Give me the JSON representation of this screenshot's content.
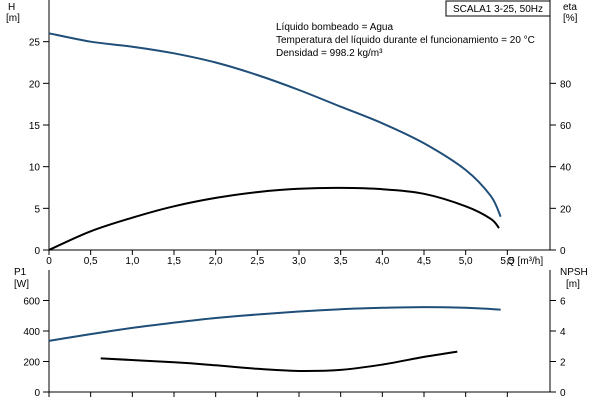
{
  "window": {
    "title": "SCALA1 3-25, 50Hz"
  },
  "annotation": {
    "liquid": "Líquido bombeado = Agua",
    "temperature": "Temperatura del líquido durante el funcionamiento = 20 °C",
    "density": "Densidad = 998.2 kg/m³"
  },
  "colors": {
    "head_curve": "#1f4e79",
    "eta_curve": "#000000",
    "p1_curve": "#1f4e79",
    "npsh_curve": "#000000",
    "axes": "#000000"
  },
  "chart_data": [
    {
      "type": "line",
      "x": {
        "label": "Q [m³/h]",
        "ticks": [
          "0",
          "0,5",
          "1,0",
          "1,5",
          "2,0",
          "2,5",
          "3,0",
          "3,5",
          "4,0",
          "4,5",
          "5,0",
          "5,5"
        ],
        "range": [
          0,
          6
        ]
      },
      "y_left": {
        "unit": "H",
        "unit_line2": "[m]",
        "ticks": [
          "0",
          "5",
          "10",
          "15",
          "20",
          "25"
        ],
        "range": [
          0,
          30
        ]
      },
      "y_right": {
        "unit": "eta",
        "unit_line2": "[%]",
        "ticks": [
          "0",
          "20",
          "40",
          "60",
          "80"
        ],
        "range": [
          0,
          120
        ]
      },
      "grid": false,
      "series": [
        {
          "axis": "left",
          "points": [
            [
              0,
              26.0
            ],
            [
              0.5,
              25.0
            ],
            [
              1.0,
              24.4
            ],
            [
              1.5,
              23.6
            ],
            [
              2.0,
              22.5
            ],
            [
              2.5,
              21.0
            ],
            [
              3.0,
              19.2
            ],
            [
              3.5,
              17.2
            ],
            [
              4.0,
              15.2
            ],
            [
              4.5,
              12.8
            ],
            [
              5.0,
              9.6
            ],
            [
              5.3,
              6.5
            ],
            [
              5.42,
              4.0
            ]
          ]
        },
        {
          "axis": "right",
          "points": [
            [
              0,
              0
            ],
            [
              0.5,
              9
            ],
            [
              1.0,
              15.5
            ],
            [
              1.5,
              21
            ],
            [
              2.0,
              25
            ],
            [
              2.5,
              27.8
            ],
            [
              3.0,
              29.4
            ],
            [
              3.5,
              29.8
            ],
            [
              4.0,
              29.2
            ],
            [
              4.5,
              27
            ],
            [
              5.0,
              21
            ],
            [
              5.3,
              15
            ],
            [
              5.4,
              10.5
            ]
          ]
        }
      ]
    },
    {
      "type": "line",
      "x": {
        "range": [
          0,
          6
        ]
      },
      "y_left": {
        "unit": "P1",
        "unit_line2": "[W]",
        "ticks": [
          "0",
          "200",
          "400",
          "600"
        ],
        "range": [
          0,
          800
        ]
      },
      "y_right": {
        "unit": "NPSH",
        "unit_line2": "[m]",
        "ticks": [
          "0",
          "2",
          "4",
          "6"
        ],
        "range": [
          0,
          8
        ]
      },
      "grid": false,
      "series": [
        {
          "axis": "left",
          "points": [
            [
              0,
              335
            ],
            [
              0.5,
              380
            ],
            [
              1.0,
              420
            ],
            [
              1.5,
              455
            ],
            [
              2.0,
              485
            ],
            [
              2.5,
              508
            ],
            [
              3.0,
              528
            ],
            [
              3.5,
              543
            ],
            [
              4.0,
              552
            ],
            [
              4.5,
              557
            ],
            [
              5.0,
              552
            ],
            [
              5.42,
              540
            ]
          ]
        },
        {
          "axis": "right",
          "points": [
            [
              0.62,
              2.2
            ],
            [
              1.5,
              1.95
            ],
            [
              2.0,
              1.75
            ],
            [
              2.5,
              1.52
            ],
            [
              3.0,
              1.38
            ],
            [
              3.5,
              1.45
            ],
            [
              4.0,
              1.8
            ],
            [
              4.5,
              2.3
            ],
            [
              4.9,
              2.65
            ]
          ]
        }
      ]
    }
  ]
}
